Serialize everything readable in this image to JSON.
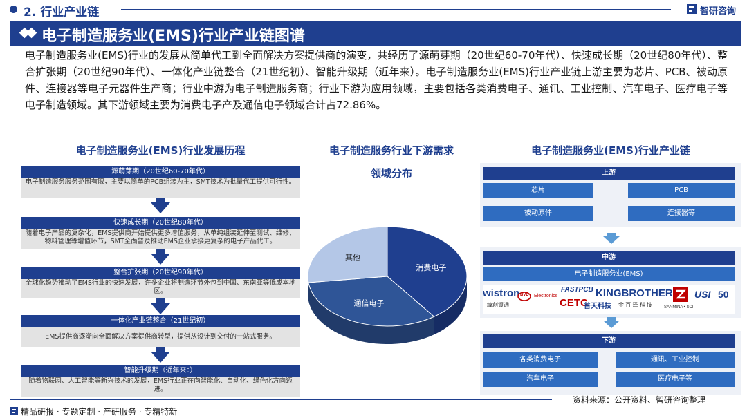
{
  "header": {
    "section_label": "2. 行业产业链",
    "brand": "智研咨询"
  },
  "banner": {
    "title": "电子制造服务业(EMS)行业产业链图谱"
  },
  "intro": "电子制造服务业(EMS)行业的发展从简单代工到全面解决方案提供商的演变，共经历了源萌芽期（20世纪60-70年代）、快速成长期（20世纪80年代）、整合扩张期（20世纪90年代）、一体化产业链整合（21世纪初）、智能升级期（近年来）。电子制造服务业(EMS)行业产业链上游主要为芯片、PCB、被动原件、连接器等电子元器件生产商；行业中游为电子制造服务商；行业下游为应用领域，主要包括各类消费电子、通讯、工业控制、汽车电子、医疗电子等电子制造领域。其下游领域主要为消费电子产及通信电子领域合计占72.86%。",
  "timeline": {
    "title": "电子制造服务业(EMS)行业发展历程",
    "stages": [
      {
        "name": "源萌芽期（20世纪60-70年代）",
        "desc": "电子制造服务服务范围有限，主要以简单的PCB组装为主，SMT技术为批量代工提供可行性。"
      },
      {
        "name": "快速成长期（20世纪80年代）",
        "desc": "随着电子产品的复杂化，EMS提供商开始提供更多增值服务，从单纯组装延伸至测试、维修、物料管理等增值环节，SMT全面普及推动EMS企业承接更复杂的电子产品代工。"
      },
      {
        "name": "整合扩张期（20世纪90年代）",
        "desc": "全球化趋势推动了EMS行业的快速发展，许多企业将制造环节外包到中国、东南亚等低成本地区。"
      },
      {
        "name": "一体化产业链整合（21世纪初）",
        "desc": "EMS提供商逐渐向全面解决方案提供商转型，提供从设计到交付的一站式服务。"
      },
      {
        "name": "智能升级期（近年来：）",
        "desc": "随着物联网、人工智能等新兴技术的发展，EMS行业正在向智能化、自动化、绿色化方向迈进。"
      }
    ]
  },
  "pie": {
    "title_line1": "电子制造服务行业下游需求",
    "title_line2": "领域分布"
  },
  "chart_data": {
    "type": "pie",
    "style": "3d",
    "slices": [
      {
        "name": "消费电子",
        "value": 40,
        "color": "#1f3f8f"
      },
      {
        "name": "通信电子",
        "value": 33,
        "color": "#2f5597"
      },
      {
        "name": "其他",
        "value": 27,
        "color": "#b4c7e7"
      }
    ]
  },
  "chain": {
    "title": "电子制造服务业(EMS)行业产业链",
    "upstream": {
      "head": "上游",
      "items": [
        "芯片",
        "PCB",
        "被动原件",
        "连接器等"
      ]
    },
    "midstream": {
      "head": "中游",
      "item": "电子制造服务业(EMS)",
      "logos": {
        "wistron": "wistron",
        "wistron_cn": "緯創資通",
        "bvd": "BVD",
        "electronics": "Electronics",
        "fastpcb": "FASTPCB",
        "cetc": "CETC",
        "cetc_cn": "普天科技",
        "kingbrother": "KINGBROTHER",
        "kingbrother_cn": "金 百 泽 科 技",
        "sanmina": "SANMINA • SCI",
        "usi": "USI",
        "usi_num": "50"
      }
    },
    "downstream": {
      "head": "下游",
      "items": [
        "各类消费电子",
        "通讯、工业控制",
        "汽车电子",
        "医疗电子等"
      ]
    }
  },
  "footer": {
    "text": "精品研报 · 专题定制 · 产研服务 · 专精特新",
    "source": "资料来源：公开资料、智研咨询整理"
  }
}
